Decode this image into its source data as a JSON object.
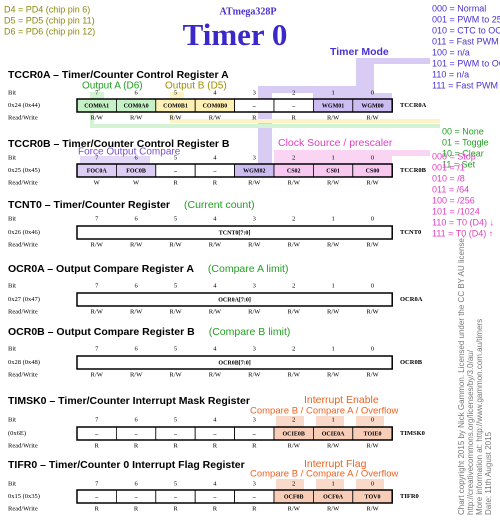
{
  "pins": [
    "D4 = PD4 (chip pin 6)",
    "D5 = PD5 (chip pin 11)",
    "D6 = PD6 (chip pin 12)"
  ],
  "chip": "ATmega328P",
  "title": "Timer 0",
  "bit_label": "Bit",
  "rw_label": "Read/Write",
  "bits": [
    7,
    6,
    5,
    4,
    3,
    2,
    1,
    0
  ],
  "timer_mode": {
    "label": "Timer Mode",
    "options": [
      "000 = Normal",
      "001 = PWM to 255",
      "010 = CTC to OCR0A",
      "011 = Fast PWM to 255",
      "100 = n/a",
      "101 = PWM to OCR0A",
      "110 = n/a",
      "111 = Fast PWM to OCR0A"
    ]
  },
  "compare_output": {
    "labels": [
      "Output A (D6)",
      "Output B (D5)"
    ],
    "options": [
      "00 = None",
      "01 = Toggle",
      "10 = Clear",
      "11 = Set"
    ]
  },
  "force_output": {
    "label": "Force Output Compare"
  },
  "clock_source": {
    "label": "Clock Source / prescaler",
    "options": [
      "000 = Stop",
      "001 = /1",
      "010 = /8",
      "011 = /64",
      "100 = /256",
      "101 = /1024",
      "110 = T0 (D4) ↓",
      "111 = T0 (D4) ↑"
    ]
  },
  "interrupt_enable": {
    "label": "Interrupt Enable",
    "sub": "Compare B / Compare A / Overflow"
  },
  "interrupt_flag": {
    "label": "Interrupt Flag",
    "sub": "Compare B / Compare A / Overflow"
  },
  "registers": [
    {
      "title": "TCCR0A – Timer/Counter Control Register A",
      "address": "0x24 (0x44)",
      "cells": [
        "COM0A1",
        "COM0A0",
        "COM0B1",
        "COM0B0",
        "–",
        "–",
        "WGM01",
        "WGM00"
      ],
      "fills": [
        "#c6f0c6",
        "#c6f0c6",
        "#fdf0b4",
        "#fdf0b4",
        null,
        null,
        "#cbbcf2",
        "#cbbcf2"
      ],
      "access": [
        "R/W",
        "R/W",
        "R/W",
        "R/W",
        "R",
        "R",
        "R/W",
        "R/W"
      ],
      "name": "TCCR0A"
    },
    {
      "title": "TCCR0B – Timer/Counter Control Register B",
      "address": "0x25 (0x45)",
      "cells": [
        "FOC0A",
        "FOC0B",
        "–",
        "–",
        "WGM02",
        "CS02",
        "CS01",
        "CS00"
      ],
      "fills": [
        "#dccdf4",
        "#dccdf4",
        null,
        null,
        "#cbbcf2",
        "#f8c8f0",
        "#f8c8f0",
        "#f8c8f0"
      ],
      "access": [
        "W",
        "W",
        "R",
        "R",
        "R/W",
        "R/W",
        "R/W",
        "R/W"
      ],
      "name": "TCCR0B"
    },
    {
      "title": "TCNT0 – Timer/Counter Register",
      "note": "(Current count)",
      "address": "0x26 (0x46)",
      "cells": [
        "TCNT0[7:0]"
      ],
      "fills": [
        null
      ],
      "access": [
        "R/W",
        "R/W",
        "R/W",
        "R/W",
        "R/W",
        "R/W",
        "R/W",
        "R/W"
      ],
      "name": "TCNT0"
    },
    {
      "title": "OCR0A – Output Compare Register A",
      "note": "(Compare A limit)",
      "address": "0x27 (0x47)",
      "cells": [
        "OCR0A[7:0]"
      ],
      "fills": [
        null
      ],
      "access": [
        "R/W",
        "R/W",
        "R/W",
        "R/W",
        "R/W",
        "R/W",
        "R/W",
        "R/W"
      ],
      "name": "OCR0A"
    },
    {
      "title": "OCR0B – Output Compare Register B",
      "note": "(Compare B limit)",
      "address": "0x28 (0x48)",
      "cells": [
        "OCR0B[7:0]"
      ],
      "fills": [
        null
      ],
      "access": [
        "R/W",
        "R/W",
        "R/W",
        "R/W",
        "R/W",
        "R/W",
        "R/W",
        "R/W"
      ],
      "name": "OCR0B"
    },
    {
      "title": "TIMSK0 – Timer/Counter Interrupt Mask Register",
      "address": "(0x6E)",
      "cells": [
        "–",
        "–",
        "–",
        "–",
        "–",
        "OCIE0B",
        "OCIE0A",
        "TOIE0"
      ],
      "fills": [
        null,
        null,
        null,
        null,
        null,
        "#f8cdb8",
        "#f8cdb8",
        "#f8cdb8"
      ],
      "access": [
        "R",
        "R",
        "R",
        "R",
        "R",
        "R/W",
        "R/W",
        "R/W"
      ],
      "name": "TIMSK0"
    },
    {
      "title": "TIFR0 – Timer/Counter 0 Interrupt Flag Register",
      "address": "0x15 (0x35)",
      "cells": [
        "–",
        "–",
        "–",
        "–",
        "–",
        "OCF0B",
        "OCF0A",
        "TOV0"
      ],
      "fills": [
        null,
        null,
        null,
        null,
        null,
        "#f8cdb8",
        "#f8cdb8",
        "#f8cdb8"
      ],
      "access": [
        "R",
        "R",
        "R",
        "R",
        "R",
        "R/W",
        "R/W",
        "R/W"
      ],
      "name": "TIFR0"
    }
  ],
  "credits": [
    "Chart copyright 2015 by Nick Gammon. Licensed under the CC BY AU license.",
    "http://creativecommons.org/licenses/by/3.0/au/",
    "More information at: http://www.gammon.com.au/timers",
    "Date: 11th August 2015"
  ]
}
